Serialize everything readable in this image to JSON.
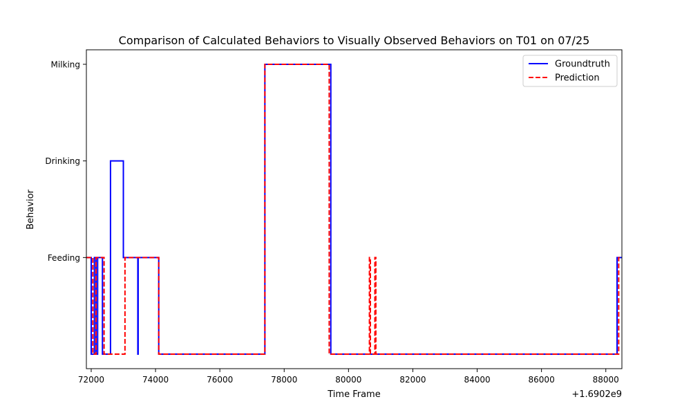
{
  "chart_data": {
    "type": "line",
    "title": "Comparison of Calculated Behaviors to Visually Observed Behaviors on T01 on 07/25",
    "xlabel": "Time Frame",
    "ylabel": "Behavior",
    "x_offset_label": "+1.6902e9",
    "xlim": [
      71850,
      88500
    ],
    "ylim": [
      -0.15,
      3.15
    ],
    "xticks": [
      72000,
      74000,
      76000,
      78000,
      80000,
      82000,
      84000,
      86000,
      88000
    ],
    "xtick_labels": [
      "72000",
      "74000",
      "76000",
      "78000",
      "80000",
      "82000",
      "84000",
      "86000",
      "88000"
    ],
    "yticks": [
      1,
      2,
      3
    ],
    "ytick_labels": [
      "Feeding",
      "Drinking",
      "Milking"
    ],
    "grid": false,
    "legend_position": "top-right",
    "series": [
      {
        "name": "Groundtruth",
        "color": "#0000ff",
        "linestyle": "solid",
        "points": [
          [
            71850,
            1
          ],
          [
            72000,
            1
          ],
          [
            72000,
            0
          ],
          [
            72100,
            0
          ],
          [
            72100,
            1
          ],
          [
            72150,
            1
          ],
          [
            72150,
            0
          ],
          [
            72200,
            0
          ],
          [
            72200,
            1
          ],
          [
            72350,
            1
          ],
          [
            72350,
            0
          ],
          [
            72600,
            0
          ],
          [
            72600,
            2
          ],
          [
            73000,
            2
          ],
          [
            73000,
            1
          ],
          [
            73450,
            1
          ],
          [
            73450,
            0
          ],
          [
            73460,
            0
          ],
          [
            73460,
            1
          ],
          [
            74100,
            1
          ],
          [
            74100,
            0
          ],
          [
            77400,
            0
          ],
          [
            77400,
            3
          ],
          [
            79450,
            3
          ],
          [
            79450,
            0
          ],
          [
            88350,
            0
          ],
          [
            88350,
            1
          ],
          [
            88500,
            1
          ]
        ]
      },
      {
        "name": "Prediction",
        "color": "#ff0000",
        "linestyle": "dashed",
        "points": [
          [
            71850,
            1
          ],
          [
            72050,
            1
          ],
          [
            72050,
            0
          ],
          [
            72150,
            0
          ],
          [
            72150,
            1
          ],
          [
            72400,
            1
          ],
          [
            72400,
            0
          ],
          [
            73050,
            0
          ],
          [
            73050,
            1
          ],
          [
            74100,
            1
          ],
          [
            74100,
            0
          ],
          [
            77400,
            0
          ],
          [
            77400,
            3
          ],
          [
            79400,
            3
          ],
          [
            79400,
            0
          ],
          [
            80650,
            0
          ],
          [
            80650,
            1
          ],
          [
            80680,
            1
          ],
          [
            80680,
            0
          ],
          [
            80820,
            0
          ],
          [
            80820,
            1
          ],
          [
            80850,
            1
          ],
          [
            80850,
            0
          ],
          [
            88400,
            0
          ],
          [
            88400,
            1
          ],
          [
            88500,
            1
          ]
        ]
      }
    ]
  }
}
